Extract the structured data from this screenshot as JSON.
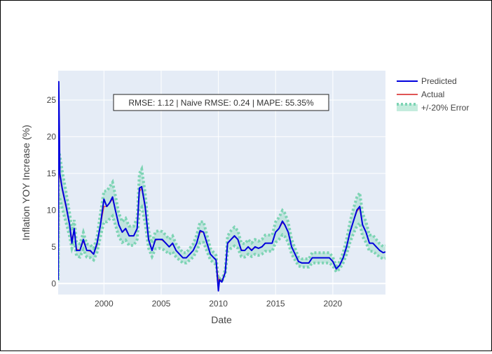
{
  "chart_data": {
    "type": "line",
    "title": "",
    "xlabel": "Date",
    "ylabel": "Inflation YOY Increase (%)",
    "x_ticks": [
      2000,
      2005,
      2010,
      2015,
      2020
    ],
    "y_ticks": [
      0,
      5,
      10,
      15,
      20,
      25
    ],
    "xlim": [
      1996.0,
      2024.6
    ],
    "ylim": [
      -1.5,
      29.0
    ],
    "grid": true,
    "legend_position": "top-right",
    "annotation": "RMSE: 1.12 | Naive RMSE: 0.24 | MAPE: 55.35%",
    "colors": {
      "plot_bg": "#e5ecf6",
      "grid": "#ffffff",
      "predicted": "#0000dd",
      "actual": "#e05555",
      "error_band": "#7dd4b4"
    },
    "series": [
      {
        "name": "Predicted",
        "x": [
          1996.0,
          1996.05,
          1996.15,
          1996.35,
          1996.7,
          1997.0,
          1997.2,
          1997.4,
          1997.6,
          1997.9,
          1998.2,
          1998.5,
          1998.8,
          1999.1,
          1999.4,
          1999.7,
          2000.0,
          2000.25,
          2000.5,
          2000.75,
          2001.0,
          2001.3,
          2001.6,
          2001.9,
          2002.2,
          2002.6,
          2002.9,
          2003.1,
          2003.3,
          2003.6,
          2003.9,
          2004.2,
          2004.5,
          2004.8,
          2005.1,
          2005.4,
          2005.7,
          2006.0,
          2006.3,
          2006.6,
          2006.9,
          2007.2,
          2007.5,
          2007.8,
          2008.1,
          2008.4,
          2008.7,
          2009.0,
          2009.3,
          2009.6,
          2009.8,
          2010.0,
          2010.1,
          2010.3,
          2010.6,
          2010.8,
          2011.1,
          2011.4,
          2011.7,
          2012.0,
          2012.3,
          2012.6,
          2012.9,
          2013.2,
          2013.5,
          2013.8,
          2014.1,
          2014.4,
          2014.7,
          2015.0,
          2015.3,
          2015.6,
          2015.8,
          2016.1,
          2016.4,
          2016.7,
          2017.0,
          2017.3,
          2017.6,
          2017.9,
          2018.2,
          2018.5,
          2018.8,
          2019.1,
          2019.4,
          2019.7,
          2020.0,
          2020.3,
          2020.6,
          2020.9,
          2021.2,
          2021.5,
          2021.8,
          2022.1,
          2022.35,
          2022.6,
          2022.9,
          2023.2,
          2023.5,
          2023.8,
          2024.1,
          2024.4,
          2024.6
        ],
        "y": [
          0.5,
          27.5,
          15.0,
          13.0,
          10.5,
          8.0,
          5.5,
          7.5,
          4.5,
          4.5,
          6.0,
          4.5,
          4.5,
          4.0,
          5.5,
          8.0,
          11.5,
          10.5,
          11.0,
          11.8,
          10.0,
          8.0,
          7.0,
          7.5,
          6.5,
          6.5,
          7.5,
          13.0,
          13.2,
          10.5,
          6.0,
          4.5,
          6.0,
          6.0,
          6.0,
          5.5,
          5.0,
          5.5,
          4.5,
          4.0,
          3.5,
          3.5,
          4.0,
          4.5,
          5.5,
          7.2,
          7.0,
          5.5,
          4.0,
          3.5,
          3.2,
          -1.0,
          0.5,
          0.2,
          1.5,
          5.5,
          6.0,
          6.5,
          6.0,
          4.5,
          4.5,
          5.0,
          4.5,
          5.0,
          4.8,
          5.0,
          5.5,
          5.5,
          5.5,
          7.0,
          7.5,
          8.5,
          8.0,
          7.0,
          5.0,
          4.0,
          3.0,
          2.8,
          2.8,
          2.8,
          3.5,
          3.5,
          3.5,
          3.5,
          3.5,
          3.5,
          3.0,
          2.0,
          2.5,
          3.5,
          5.0,
          7.0,
          8.5,
          10.0,
          10.5,
          8.0,
          7.0,
          5.5,
          5.5,
          5.0,
          4.5,
          4.2,
          4.3
        ]
      },
      {
        "name": "Actual",
        "x": [
          1996.0,
          1996.05,
          1996.15,
          1996.35,
          1996.7,
          1997.0,
          1997.2,
          1997.4,
          1997.6,
          1997.9,
          1998.2,
          1998.5,
          1998.8,
          1999.1,
          1999.4,
          1999.7,
          2000.0,
          2000.25,
          2000.5,
          2000.75,
          2001.0,
          2001.3,
          2001.6,
          2001.9,
          2002.2,
          2002.6,
          2002.9,
          2003.1,
          2003.3,
          2003.6,
          2003.9,
          2004.2,
          2004.5,
          2004.8,
          2005.1,
          2005.4,
          2005.7,
          2006.0,
          2006.3,
          2006.6,
          2006.9,
          2007.2,
          2007.5,
          2007.8,
          2008.1,
          2008.4,
          2008.7,
          2009.0,
          2009.3,
          2009.6,
          2009.8,
          2010.0,
          2010.1,
          2010.3,
          2010.6,
          2010.8,
          2011.1,
          2011.4,
          2011.7,
          2012.0,
          2012.3,
          2012.6,
          2012.9,
          2013.2,
          2013.5,
          2013.8,
          2014.1,
          2014.4,
          2014.7,
          2015.0,
          2015.3,
          2015.6,
          2015.8,
          2016.1,
          2016.4,
          2016.7,
          2017.0,
          2017.3,
          2017.6,
          2017.9,
          2018.2,
          2018.5,
          2018.8,
          2019.1,
          2019.4,
          2019.7,
          2020.0,
          2020.3,
          2020.6,
          2020.9,
          2021.2,
          2021.5,
          2021.8,
          2022.1,
          2022.35,
          2022.6,
          2022.9,
          2023.2,
          2023.5,
          2023.8,
          2024.1,
          2024.4,
          2024.6
        ],
        "y": [
          0.5,
          15.0,
          14.5,
          12.8,
          10.3,
          8.0,
          6.0,
          7.2,
          4.7,
          4.5,
          5.8,
          4.5,
          4.4,
          4.0,
          5.3,
          8.0,
          10.5,
          10.5,
          11.0,
          11.5,
          10.0,
          8.0,
          7.0,
          7.4,
          6.5,
          6.5,
          7.5,
          12.5,
          13.0,
          10.3,
          6.0,
          4.6,
          5.9,
          6.0,
          5.9,
          5.5,
          5.0,
          5.4,
          4.5,
          4.0,
          3.5,
          3.5,
          4.0,
          4.5,
          5.5,
          7.0,
          7.0,
          5.5,
          4.0,
          3.5,
          3.2,
          0.3,
          0.6,
          0.3,
          1.6,
          5.4,
          6.0,
          6.4,
          6.0,
          4.6,
          4.5,
          5.0,
          4.6,
          5.0,
          4.8,
          5.0,
          5.5,
          5.5,
          5.5,
          7.0,
          7.5,
          8.3,
          8.0,
          7.0,
          5.0,
          4.0,
          3.0,
          2.8,
          2.8,
          2.8,
          3.5,
          3.5,
          3.5,
          3.5,
          3.5,
          3.5,
          3.0,
          2.0,
          2.5,
          3.5,
          5.0,
          7.0,
          8.5,
          9.8,
          10.3,
          8.0,
          7.0,
          5.5,
          5.5,
          5.0,
          4.5,
          4.2,
          4.3
        ]
      }
    ],
    "error_band": {
      "name": "+/-20% Error",
      "relative_error": 0.2
    }
  }
}
